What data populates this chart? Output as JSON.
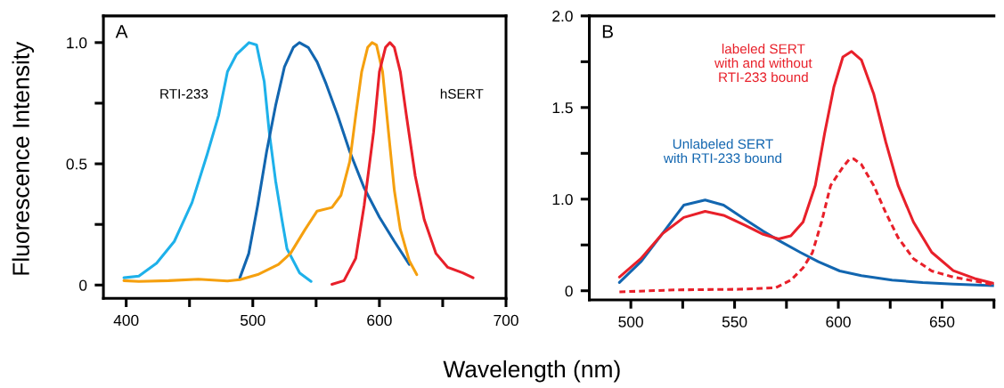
{
  "chart_data": [
    {
      "type": "line",
      "xlabel": "Wavelength (nm)",
      "ylabel": "Fluorescence Intensity",
      "annotations": [
        "A"
      ],
      "xlim": [
        382,
        700
      ],
      "xticks": [
        400,
        {
          "value": 450,
          "label": null
        },
        500,
        {
          "value": 550,
          "label": null
        },
        600,
        {
          "value": 650,
          "label": null
        },
        700
      ],
      "ylim": [
        -0.055,
        1.11
      ],
      "yticks": [
        0,
        {
          "value": 0.25,
          "label": null
        },
        0.5,
        {
          "value": 0.75,
          "label": null
        },
        {
          "value": 1.0,
          "label": "1.0"
        }
      ],
      "grid": false,
      "marker": "none",
      "series": [
        {
          "name": "RTI-233",
          "color": "#1eb1ea",
          "x": [
            398.2,
            410,
            424,
            438,
            452,
            464,
            473,
            480,
            487,
            497,
            503,
            509,
            513,
            518,
            523,
            527,
            537,
            546
          ],
          "values": [
            0.03,
            0.037,
            0.09,
            0.18,
            0.34,
            0.54,
            0.7,
            0.88,
            0.95,
            1.0,
            0.99,
            0.84,
            0.63,
            0.43,
            0.27,
            0.15,
            0.05,
            0.015
          ]
        },
        {
          "color": "#1266b0",
          "x": [
            489.8,
            496.8,
            503.9,
            510.9,
            518,
            525,
            532,
            536.8,
            543.8,
            550.8,
            557.9,
            567,
            576.6,
            588,
            600,
            611.8,
            623.6
          ],
          "values": [
            0.03,
            0.13,
            0.33,
            0.55,
            0.74,
            0.9,
            0.98,
            1.0,
            0.98,
            0.92,
            0.83,
            0.7,
            0.55,
            0.4,
            0.28,
            0.18,
            0.085
          ]
        },
        {
          "color": "#f5a00f",
          "x": [
            398.2,
            410,
            433.5,
            457,
            480,
            489.8,
            503.9,
            520.3,
            529.7,
            541.4,
            550.8,
            562.5,
            569.6,
            576.6,
            581.3,
            586,
            590.7,
            594.2,
            597.7,
            602.5,
            607.2,
            611.8,
            616.5,
            623.6,
            629.5
          ],
          "values": [
            0.018,
            0.015,
            0.018,
            0.024,
            0.017,
            0.022,
            0.043,
            0.085,
            0.13,
            0.23,
            0.305,
            0.32,
            0.37,
            0.51,
            0.7,
            0.88,
            0.98,
            1.0,
            0.99,
            0.88,
            0.63,
            0.39,
            0.23,
            0.1,
            0.043
          ]
        },
        {
          "name": "hSERT",
          "color": "#e8202a",
          "x": [
            562.5,
            572,
            581.3,
            588,
            595.4,
            600,
            604.8,
            608.3,
            611.8,
            616.5,
            621.3,
            628.3,
            635.4,
            644.7,
            654,
            665.8,
            674
          ],
          "values": [
            0.003,
            0.018,
            0.11,
            0.33,
            0.63,
            0.88,
            0.98,
            1.0,
            0.98,
            0.88,
            0.7,
            0.45,
            0.27,
            0.13,
            0.073,
            0.05,
            0.03
          ]
        }
      ]
    },
    {
      "type": "line",
      "annotations": [
        "B"
      ],
      "xlim": [
        480,
        675
      ],
      "xticks": [
        500,
        {
          "value": 525,
          "label": null
        },
        550,
        {
          "value": 575,
          "label": null
        },
        600,
        {
          "value": 625,
          "label": null
        },
        650,
        {
          "value": 675,
          "label": null
        }
      ],
      "ylim": [
        0.45,
        2.0
      ],
      "yticks": [
        {
          "value": 0.5,
          "label": "0"
        },
        {
          "value": 0.75,
          "label": null
        },
        {
          "value": 1.0,
          "label": "1.0"
        },
        {
          "value": 1.25,
          "label": null
        },
        1.5,
        {
          "value": 1.75,
          "label": null
        },
        {
          "value": 2.0,
          "label": "2.0"
        }
      ],
      "grid": false,
      "marker": "none",
      "series": [
        {
          "name": "Unlabeled SERT\nwith RTI-233 bound",
          "color": "#1266b0",
          "x": [
            494.5,
            504.8,
            515.1,
            525.5,
            535.8,
            544.7,
            555,
            563.8,
            571.2,
            581.6,
            590.4,
            600.7,
            611.1,
            625.9,
            640.6,
            655.4,
            675
          ],
          "values": [
            0.545,
            0.658,
            0.81,
            0.967,
            0.995,
            0.967,
            0.89,
            0.825,
            0.775,
            0.71,
            0.658,
            0.608,
            0.583,
            0.558,
            0.545,
            0.536,
            0.528
          ]
        },
        {
          "name": "labeled SERT\nwith and without\nRTI-233 bound",
          "color": "#e8202a",
          "x": [
            494.5,
            504.8,
            515.1,
            525.5,
            535.8,
            544.7,
            555,
            563.8,
            571.2,
            577.1,
            583,
            588.9,
            593.4,
            597.8,
            602.2,
            606.4,
            611.1,
            617,
            622.9,
            628.8,
            636.2,
            645,
            655.4,
            665.7,
            675
          ],
          "values": [
            0.575,
            0.675,
            0.81,
            0.9,
            0.933,
            0.912,
            0.858,
            0.808,
            0.783,
            0.8,
            0.875,
            1.075,
            1.36,
            1.61,
            1.776,
            1.806,
            1.76,
            1.576,
            1.31,
            1.075,
            0.875,
            0.71,
            0.61,
            0.567,
            0.54
          ]
        },
        {
          "color": "#e8202a",
          "line_style": "dashed",
          "x": [
            494.5,
            522.5,
            552,
            569.7,
            577.1,
            583,
            587.5,
            591.9,
            596.3,
            602.2,
            605.2,
            607.4,
            611.1,
            617,
            622.9,
            628.8,
            636.2,
            645,
            655.4,
            665.7,
            675
          ],
          "values": [
            0.494,
            0.505,
            0.508,
            0.516,
            0.558,
            0.625,
            0.708,
            0.875,
            1.075,
            1.175,
            1.216,
            1.22,
            1.19,
            1.075,
            0.925,
            0.79,
            0.675,
            0.608,
            0.575,
            0.553,
            0.533
          ]
        }
      ]
    }
  ]
}
